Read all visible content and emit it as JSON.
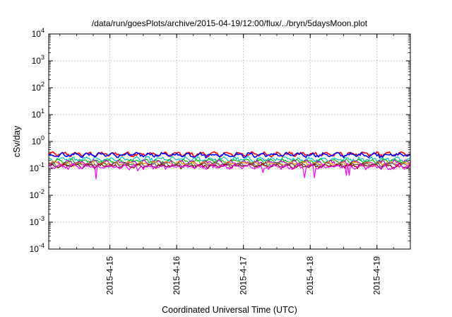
{
  "chart_data": {
    "type": "line",
    "title": "/data/run/goesPlots/archive/2015-04-19/12:00/flux/../bryn/5daysMoon.plot",
    "xlabel": "Coordinated Universal Time (UTC)",
    "ylabel": "cSv/day",
    "yscale": "log",
    "ylim": [
      0.0001,
      10000
    ],
    "y_ticks": [
      {
        "value": 0.0001,
        "base": "10",
        "exp": "-4"
      },
      {
        "value": 0.001,
        "base": "10",
        "exp": "-3"
      },
      {
        "value": 0.01,
        "base": "10",
        "exp": "-2"
      },
      {
        "value": 0.1,
        "base": "10",
        "exp": "-1"
      },
      {
        "value": 1,
        "base": "10",
        "exp": "0"
      },
      {
        "value": 10,
        "base": "10",
        "exp": "1"
      },
      {
        "value": 100,
        "base": "10",
        "exp": "2"
      },
      {
        "value": 1000,
        "base": "10",
        "exp": "3"
      },
      {
        "value": 10000,
        "base": "10",
        "exp": "4"
      }
    ],
    "xlim": [
      "2015-04-14T02:00",
      "2015-04-19T12:00"
    ],
    "x_ticks": [
      {
        "value": "2015-04-15T00:00",
        "label": "2015-4-15"
      },
      {
        "value": "2015-04-16T00:00",
        "label": "2015-4-16"
      },
      {
        "value": "2015-04-17T00:00",
        "label": "2015-4-17"
      },
      {
        "value": "2015-04-18T00:00",
        "label": "2015-4-18"
      },
      {
        "value": "2015-04-19T00:00",
        "label": "2015-4-19"
      }
    ],
    "grid": true,
    "legend": "none",
    "series": [
      {
        "color": "#ff0000",
        "base": 0.34,
        "noise": 0.05,
        "dips": []
      },
      {
        "color": "#0000ff",
        "base": 0.32,
        "noise": 0.05,
        "dips": []
      },
      {
        "color": "#00c0c0",
        "base": 0.22,
        "noise": 0.04,
        "dips": []
      },
      {
        "color": "#00c000",
        "base": 0.185,
        "noise": 0.03,
        "dips": []
      },
      {
        "color": "#c000c0",
        "base": 0.165,
        "noise": 0.03,
        "dips": []
      },
      {
        "color": "#ff8c00",
        "base": 0.15,
        "noise": 0.025,
        "dips": []
      },
      {
        "color": "#606060",
        "base": 0.14,
        "noise": 0.02,
        "dips": []
      },
      {
        "color": "#800000",
        "base": 0.125,
        "noise": 0.02,
        "dips": []
      },
      {
        "color": "#ff00ff",
        "base": 0.115,
        "noise": 0.02,
        "dips": [
          {
            "x": "2015-04-14T19:00",
            "value": 0.04
          },
          {
            "x": "2015-04-15T10:00",
            "value": 0.08
          },
          {
            "x": "2015-04-17T07:00",
            "value": 0.07
          },
          {
            "x": "2015-04-17T22:00",
            "value": 0.045
          },
          {
            "x": "2015-04-18T01:30",
            "value": 0.045
          },
          {
            "x": "2015-04-18T13:00",
            "value": 0.055
          },
          {
            "x": "2015-04-18T14:00",
            "value": 0.055
          },
          {
            "x": "2015-04-19T04:00",
            "value": 0.09
          }
        ]
      }
    ]
  }
}
